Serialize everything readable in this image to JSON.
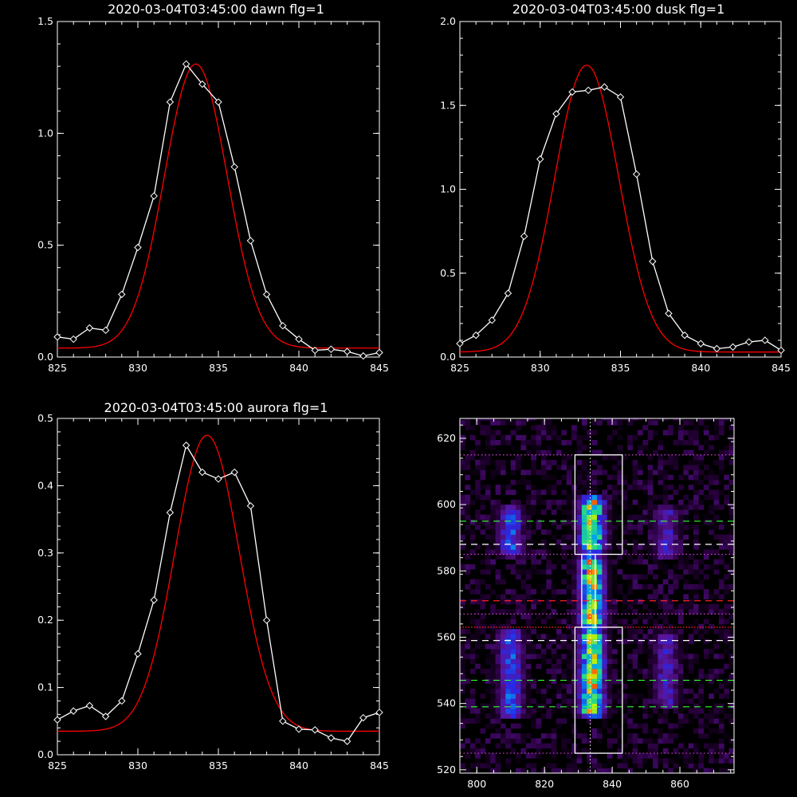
{
  "colors": {
    "background": "#000000",
    "axes": "#ffffff",
    "data_line": "#ffffff",
    "fit_line": "#ff0000",
    "green_dashed": "#33ff33",
    "red_dashed": "#ff2020",
    "magenta_dotted": "#cc44cc"
  },
  "chart_data": [
    {
      "type": "line",
      "title": "2020-03-04T03:45:00 dawn flg=1",
      "xlim": [
        825,
        845
      ],
      "ylim": [
        0,
        1.5
      ],
      "xticks": [
        "825",
        "830",
        "835",
        "840",
        "845"
      ],
      "yticks": [
        "0.0",
        "0.5",
        "1.0",
        "1.5"
      ],
      "series": [
        {
          "marker": "diamond",
          "x": [
            825,
            826,
            827,
            828,
            829,
            830,
            831,
            832,
            833,
            834,
            835,
            836,
            837,
            838,
            839,
            840,
            841,
            842,
            843,
            844,
            845
          ],
          "y": [
            0.09,
            0.08,
            0.13,
            0.12,
            0.28,
            0.49,
            0.72,
            1.14,
            1.31,
            1.22,
            1.14,
            0.85,
            0.52,
            0.28,
            0.14,
            0.08,
            0.03,
            0.035,
            0.025,
            0.005,
            0.02
          ]
        },
        {
          "fit": "gaussian",
          "amplitude": 1.27,
          "center": 833.6,
          "sigma": 1.95,
          "offset": 0.04
        }
      ]
    },
    {
      "type": "line",
      "title": "2020-03-04T03:45:00 dusk flg=1",
      "xlim": [
        825,
        845
      ],
      "ylim": [
        0,
        2.0
      ],
      "xticks": [
        "825",
        "830",
        "835",
        "840",
        "845"
      ],
      "yticks": [
        "0.0",
        "0.5",
        "1.0",
        "1.5",
        "2.0"
      ],
      "series": [
        {
          "marker": "diamond",
          "x": [
            825,
            826,
            827,
            828,
            829,
            830,
            831,
            832,
            833,
            834,
            835,
            836,
            837,
            838,
            839,
            840,
            841,
            842,
            843,
            844,
            845
          ],
          "y": [
            0.08,
            0.13,
            0.22,
            0.38,
            0.72,
            1.18,
            1.45,
            1.58,
            1.59,
            1.61,
            1.55,
            1.09,
            0.57,
            0.26,
            0.13,
            0.08,
            0.05,
            0.06,
            0.09,
            0.1,
            0.04
          ]
        },
        {
          "fit": "gaussian",
          "amplitude": 1.71,
          "center": 832.9,
          "sigma": 2.0,
          "offset": 0.03
        }
      ]
    },
    {
      "type": "line",
      "title": "2020-03-04T03:45:00 aurora flg=1",
      "xlim": [
        825,
        845
      ],
      "ylim": [
        0,
        0.5
      ],
      "xticks": [
        "825",
        "830",
        "835",
        "840",
        "845"
      ],
      "yticks": [
        "0.0",
        "0.1",
        "0.2",
        "0.3",
        "0.4",
        "0.5"
      ],
      "series": [
        {
          "marker": "diamond",
          "x": [
            825,
            826,
            827,
            828,
            829,
            830,
            831,
            832,
            833,
            834,
            835,
            836,
            837,
            838,
            839,
            840,
            841,
            842,
            843,
            844,
            845
          ],
          "y": [
            0.052,
            0.065,
            0.073,
            0.057,
            0.08,
            0.15,
            0.23,
            0.36,
            0.46,
            0.42,
            0.41,
            0.42,
            0.37,
            0.2,
            0.05,
            0.038,
            0.037,
            0.025,
            0.02,
            0.055,
            0.063
          ]
        },
        {
          "fit": "gaussian",
          "amplitude": 0.44,
          "center": 834.3,
          "sigma": 2.0,
          "offset": 0.035
        }
      ]
    },
    {
      "type": "heatmap",
      "title": "",
      "xlim": [
        795,
        876
      ],
      "ylim": [
        519,
        626
      ],
      "xticks": [
        "800",
        "820",
        "840",
        "860"
      ],
      "yticks": [
        "520",
        "540",
        "560",
        "580",
        "600",
        "620"
      ],
      "emission_columns": [
        {
          "x": 810,
          "y_ranges": [
            [
              584,
              600
            ],
            [
              535,
              563
            ]
          ],
          "peak": 0.55
        },
        {
          "x": 834,
          "y_ranges": [
            [
              585,
              603
            ],
            [
              562,
              585
            ],
            [
              535,
              563
            ]
          ],
          "peak": 1.0
        },
        {
          "x": 856,
          "y_ranges": [
            [
              583,
              600
            ],
            [
              538,
              562
            ]
          ],
          "peak": 0.4
        }
      ],
      "boxes": [
        {
          "x": [
            829,
            843
          ],
          "y": [
            585,
            615
          ]
        },
        {
          "x": [
            829,
            843
          ],
          "y": [
            525,
            563
          ]
        },
        {
          "x": [
            831,
            835
          ],
          "y": [
            563,
            585
          ]
        }
      ],
      "green_dashed_y": [
        595,
        547,
        539
      ],
      "white_dashed_y": [
        588,
        559
      ],
      "red_dashed_y": [
        571
      ],
      "red_dotted_y": [
        563
      ],
      "magenta_dotted_y": [
        615,
        585,
        567,
        525
      ],
      "vertical_dotted_x": 833.5
    }
  ]
}
